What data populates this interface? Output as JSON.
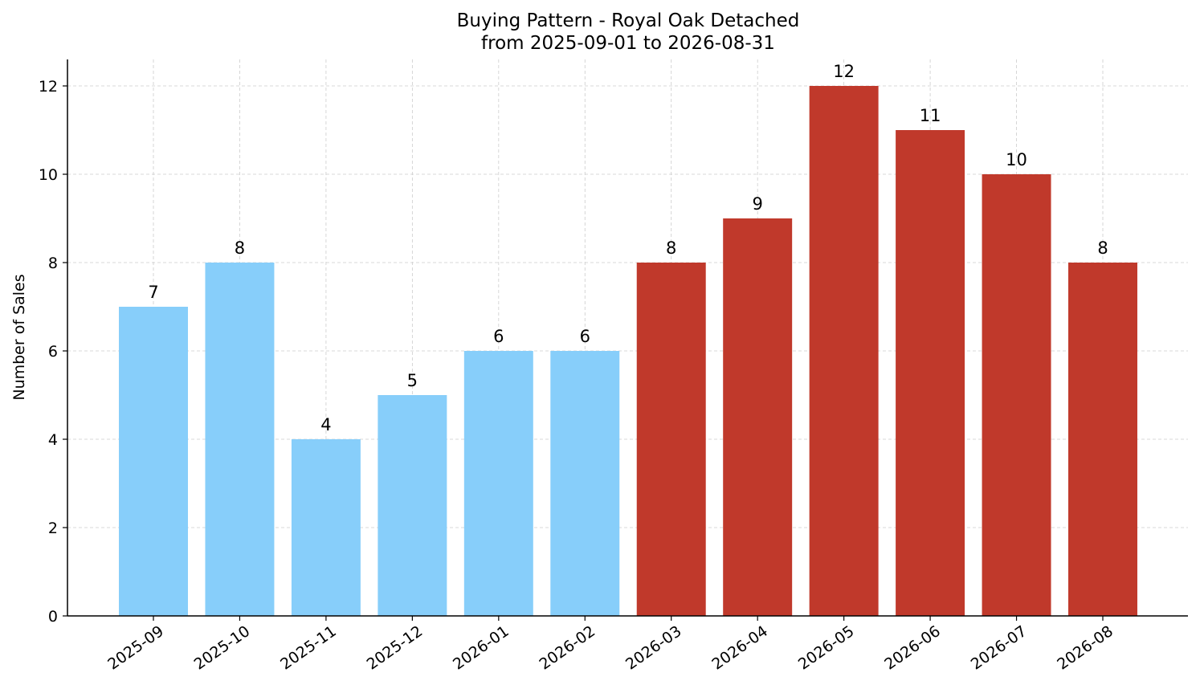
{
  "chart_data": {
    "type": "bar",
    "title": "Buying Pattern - Royal Oak Detached",
    "subtitle": "from 2025-09-01 to 2026-08-31",
    "xlabel": "",
    "ylabel": "Number of Sales",
    "categories": [
      "2025-09",
      "2025-10",
      "2025-11",
      "2025-12",
      "2026-01",
      "2026-02",
      "2026-03",
      "2026-04",
      "2026-05",
      "2026-06",
      "2026-07",
      "2026-08"
    ],
    "values": [
      7,
      8,
      4,
      5,
      6,
      6,
      8,
      9,
      12,
      11,
      10,
      8
    ],
    "bar_colors": [
      "#87cefa",
      "#87cefa",
      "#87cefa",
      "#87cefa",
      "#87cefa",
      "#87cefa",
      "#c0392b",
      "#c0392b",
      "#c0392b",
      "#c0392b",
      "#c0392b",
      "#c0392b"
    ],
    "ylim": [
      0,
      12.6
    ],
    "yticks": [
      0,
      2,
      4,
      6,
      8,
      10,
      12
    ],
    "grid": true,
    "legend": "none"
  }
}
